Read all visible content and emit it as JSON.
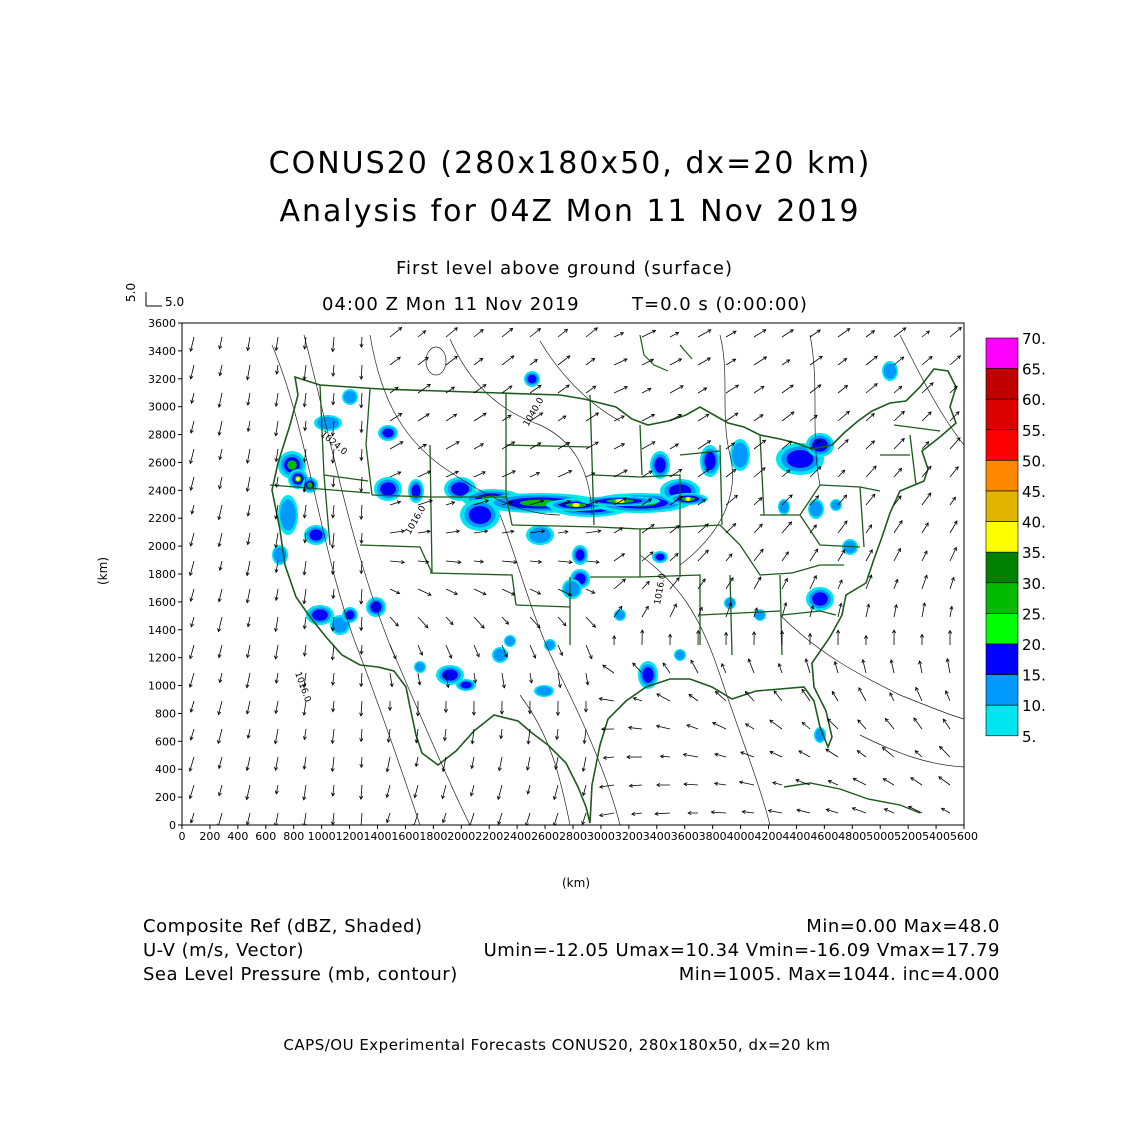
{
  "header": {
    "title_line1": "CONUS20 (280x180x50, dx=20 km)",
    "title_line2": "Analysis for 04Z Mon 11 Nov 2019",
    "level": "First level above ground (surface)",
    "valid_time": "04:00 Z Mon 11 Nov 2019",
    "forecast_time": "T=0.0 s (0:00:00)"
  },
  "vector_reference": {
    "u": "5.0",
    "v": "5.0"
  },
  "axes": {
    "x_label": "(km)",
    "y_label": "(km)",
    "x_ticks": [
      "0",
      "200",
      "400",
      "600",
      "800",
      "1000",
      "1200",
      "1400",
      "1600",
      "1800",
      "2000",
      "2200",
      "2400",
      "2600",
      "2800",
      "3000",
      "3200",
      "3400",
      "3600",
      "3800",
      "4000",
      "4200",
      "4400",
      "4600",
      "4800",
      "5000",
      "5200",
      "5400",
      "5600"
    ],
    "y_ticks": [
      "0",
      "200",
      "400",
      "600",
      "800",
      "1000",
      "1200",
      "1400",
      "1600",
      "1800",
      "2000",
      "2200",
      "2400",
      "2600",
      "2800",
      "3000",
      "3200",
      "3400",
      "3600"
    ],
    "x_range": [
      0,
      5600
    ],
    "y_range": [
      0,
      3600
    ]
  },
  "colorbar": {
    "labels": [
      "70.",
      "65.",
      "60.",
      "55.",
      "50.",
      "45.",
      "40.",
      "35.",
      "30.",
      "25.",
      "20.",
      "15.",
      "10.",
      "5."
    ],
    "colors": [
      "#ff00ff",
      "#c00000",
      "#dd0000",
      "#ff0000",
      "#ff8800",
      "#e0b400",
      "#ffff00",
      "#008000",
      "#00bb00",
      "#00ff00",
      "#0000ff",
      "#0099ff",
      "#00e5ee"
    ]
  },
  "contour_labels": [
    "1024.0",
    "1040.0",
    "1016.0",
    "1016.0",
    "1016.0"
  ],
  "stats": {
    "ref_label": "Composite Ref (dBZ, Shaded)",
    "ref_stats": "Min=0.00 Max=48.0",
    "wind_label": "U-V (m/s, Vector)",
    "wind_stats": "Umin=-12.05 Umax=10.34 Vmin=-16.09 Vmax=17.79",
    "slp_label": "Sea Level Pressure (mb, contour)",
    "slp_stats": "Min=1005. Max=1044. inc=4.000"
  },
  "footer": "CAPS/OU Experimental Forecasts  CONUS20, 280x180x50, dx=20 km"
}
